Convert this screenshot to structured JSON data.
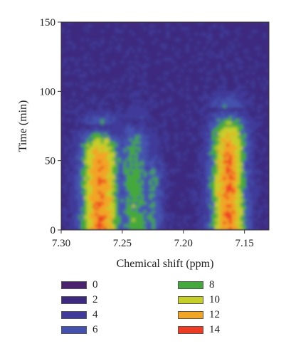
{
  "chart_data": {
    "type": "heatmap",
    "title": "",
    "xlabel": "Chemical shift (ppm)",
    "ylabel": "Time (min)",
    "xlim": [
      7.3,
      7.13
    ],
    "ylim": [
      0,
      150
    ],
    "x_ticks": [
      "7.30",
      "7.25",
      "7.20",
      "7.15"
    ],
    "y_ticks": [
      "0",
      "50",
      "100",
      "150"
    ],
    "x_tick_values": [
      7.3,
      7.25,
      7.2,
      7.15
    ],
    "y_tick_values": [
      0,
      50,
      100,
      150
    ],
    "legend_position": "bottom",
    "legend": [
      {
        "label": "0",
        "value": 0,
        "color": "#4a2270"
      },
      {
        "label": "2",
        "value": 2,
        "color": "#3d2a80"
      },
      {
        "label": "4",
        "value": 4,
        "color": "#403a9a"
      },
      {
        "label": "6",
        "value": 6,
        "color": "#4452ae"
      },
      {
        "label": "8",
        "value": 8,
        "color": "#45a83c"
      },
      {
        "label": "10",
        "value": 10,
        "color": "#c6cf2a"
      },
      {
        "label": "12",
        "value": 12,
        "color": "#f2a425"
      },
      {
        "label": "14",
        "value": 14,
        "color": "#ee3b23"
      }
    ],
    "peaks": [
      {
        "center_ppm": 7.268,
        "width_ppm": 0.022,
        "t_max_min": 75,
        "max_level": 14
      },
      {
        "center_ppm": 7.24,
        "width_ppm": 0.02,
        "t_max_min": 80,
        "max_level": 9
      },
      {
        "center_ppm": 7.225,
        "width_ppm": 0.012,
        "t_max_min": 60,
        "max_level": 8
      },
      {
        "center_ppm": 7.163,
        "width_ppm": 0.02,
        "t_max_min": 88,
        "max_level": 14
      }
    ]
  }
}
